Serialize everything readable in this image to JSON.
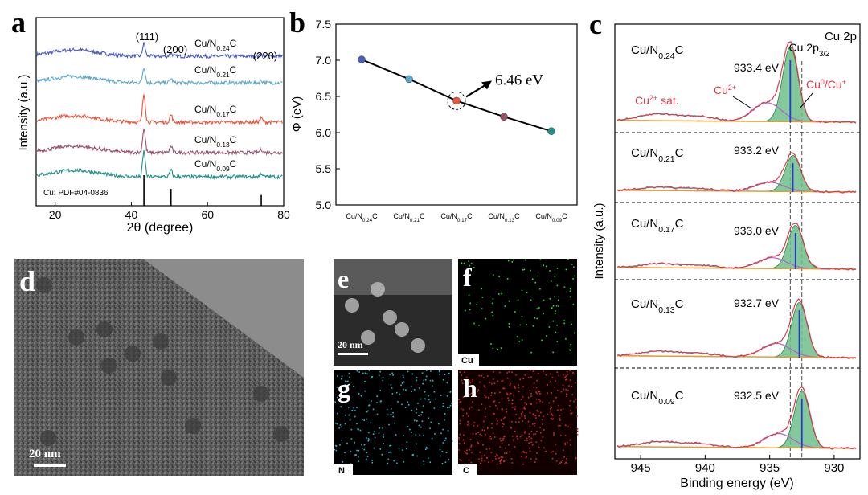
{
  "panel_letters": {
    "a": "a",
    "b": "b",
    "c": "c",
    "d": "d",
    "e": "e",
    "f": "f",
    "g": "g",
    "h": "h"
  },
  "chart_data": [
    {
      "panel": "a",
      "type": "line",
      "xlabel": "2θ (degree)",
      "ylabel": "Intensity (a.u.)",
      "xlim": [
        15,
        80
      ],
      "xticks": [
        "20",
        "40",
        "60",
        "80"
      ],
      "peak_labels": [
        {
          "text": "(111)",
          "x": 43.3
        },
        {
          "text": "(200)",
          "x": 50.4
        },
        {
          "text": "(220)",
          "x": 74.1
        }
      ],
      "reference": {
        "label": "Cu: PDF#04-0836",
        "lines": [
          43.3,
          50.4,
          74.1
        ],
        "heights": [
          1.0,
          0.55,
          0.35
        ]
      },
      "series": [
        {
          "name": "Cu/N0.24C",
          "sub": "0.24",
          "color": "#4b5bc5",
          "peak_111": 0.45
        },
        {
          "name": "Cu/N0.21C",
          "sub": "0.21",
          "color": "#5ba7cf",
          "peak_111": 0.55
        },
        {
          "name": "Cu/N0.17C",
          "sub": "0.17",
          "color": "#e8533a",
          "peak_111": 1.0
        },
        {
          "name": "Cu/N0.13C",
          "sub": "0.13",
          "color": "#9a4f6e",
          "peak_111": 0.85
        },
        {
          "name": "Cu/N0.09C",
          "sub": "0.09",
          "color": "#1d8f88",
          "peak_111": 0.9
        }
      ]
    },
    {
      "panel": "b",
      "type": "line",
      "ylabel": "Φ (eV)",
      "ylim": [
        5.0,
        7.5
      ],
      "yticks": [
        "5.0",
        "5.5",
        "6.0",
        "6.5",
        "7.0",
        "7.5"
      ],
      "categories": [
        {
          "pre": "Cu/N",
          "sub": "0.24",
          "post": "C"
        },
        {
          "pre": "Cu/N",
          "sub": "0.21",
          "post": "C"
        },
        {
          "pre": "Cu/N",
          "sub": "0.17",
          "post": "C"
        },
        {
          "pre": "Cu/N",
          "sub": "0.13",
          "post": "C"
        },
        {
          "pre": "Cu/N",
          "sub": "0.09",
          "post": "C"
        }
      ],
      "values": [
        7.01,
        6.74,
        6.44,
        6.22,
        6.02
      ],
      "point_colors": [
        "#4a5fc0",
        "#5ba7cf",
        "#e8533a",
        "#9a4f6e",
        "#1d8f88"
      ],
      "annotation": "6.46 eV"
    },
    {
      "panel": "c",
      "type": "line",
      "title": "Cu 2p",
      "xlabel": "Binding energy (eV)",
      "ylabel": "Intensity (a.u.)",
      "xlim": [
        947,
        928
      ],
      "xticks": [
        "945",
        "940",
        "935",
        "930"
      ],
      "peak_label": {
        "main": "Cu 2p",
        "sub": "3/2"
      },
      "component_labels": {
        "sat": "sat.",
        "cu2": "Cu",
        "cu0": "Cu"
      },
      "ref_lines": [
        933.4,
        932.5
      ],
      "stacks": [
        {
          "sample_sub": "0.24",
          "peak": "933.4 eV",
          "pos": 933.4
        },
        {
          "sample_sub": "0.21",
          "peak": "933.2 eV",
          "pos": 933.2
        },
        {
          "sample_sub": "0.17",
          "peak": "933.0 eV",
          "pos": 933.0
        },
        {
          "sample_sub": "0.13",
          "peak": "932.7 eV",
          "pos": 932.7
        },
        {
          "sample_sub": "0.09",
          "peak": "932.5 eV",
          "pos": 932.5
        }
      ]
    }
  ],
  "images": {
    "d_scale": "20 nm",
    "e_scale": "20 nm",
    "map_labels": {
      "f": "Cu",
      "g": "N",
      "h": "C"
    }
  },
  "colors": {
    "red_fit": "#d83a4c",
    "green_fill": "#2e9a4e",
    "purple": "#b362c8",
    "blue_line": "#2a38d6"
  }
}
